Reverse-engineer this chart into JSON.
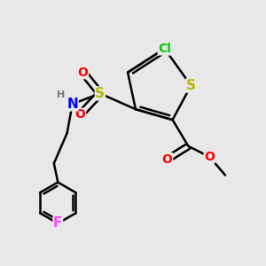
{
  "bg_color": "#e8e8e8",
  "bond_color": "#000000",
  "bond_width": 1.8,
  "atom_colors": {
    "S_thio": "#b8b800",
    "S_sulfo": "#b8b800",
    "Cl": "#00cc00",
    "O": "#ff0000",
    "N": "#0000ff",
    "F": "#ff44ff",
    "H": "#777777",
    "C": "#000000"
  },
  "fs": 10,
  "fs_small": 8
}
